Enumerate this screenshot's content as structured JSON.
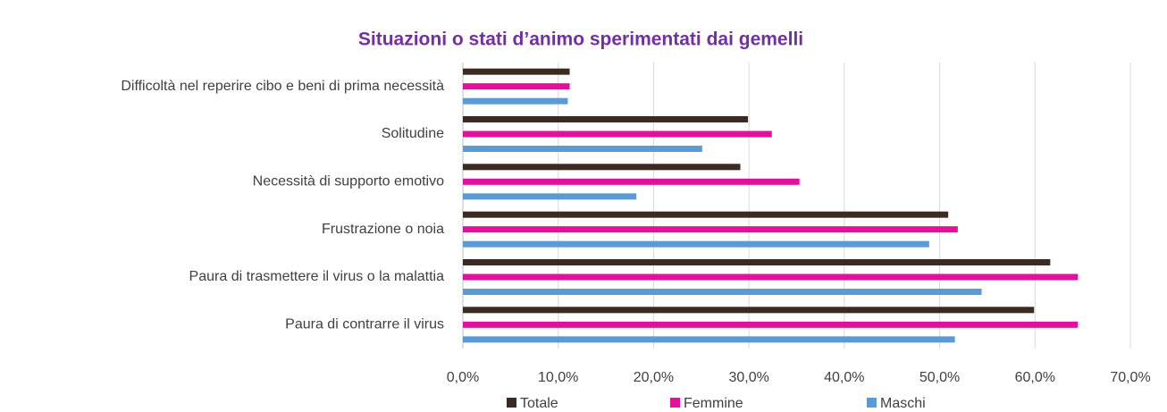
{
  "chart_data": {
    "type": "hbar",
    "title": "Situazioni o stati d’animo sperimentati dai gemelli",
    "categories": [
      "Difficoltà nel reperire cibo e beni di prima necessità",
      "Solitudine",
      "Necessità di supporto emotivo",
      "Frustrazione o noia",
      "Paura di trasmettere il virus o la malattia",
      "Paura di contrarre il virus"
    ],
    "series": [
      {
        "name": "Totale",
        "color": "#3b2a22",
        "values": [
          11.2,
          29.9,
          29.1,
          50.9,
          61.6,
          59.9
        ]
      },
      {
        "name": "Femmine",
        "color": "#e0119b",
        "values": [
          11.2,
          32.4,
          35.3,
          51.9,
          64.5,
          64.5
        ]
      },
      {
        "name": "Maschi",
        "color": "#5b9bd5",
        "values": [
          11.0,
          25.1,
          18.2,
          48.9,
          54.4,
          51.6
        ]
      }
    ],
    "xlim": [
      0,
      70
    ],
    "xticks": [
      {
        "value": 0,
        "label": "0,0%"
      },
      {
        "value": 10,
        "label": "10,0%"
      },
      {
        "value": 20,
        "label": "20,0%"
      },
      {
        "value": 30,
        "label": "30,0%"
      },
      {
        "value": 40,
        "label": "40,0%"
      },
      {
        "value": 50,
        "label": "50,0%"
      },
      {
        "value": 60,
        "label": "60,0%"
      },
      {
        "value": 70,
        "label": "70,0%"
      }
    ],
    "grid": true
  }
}
